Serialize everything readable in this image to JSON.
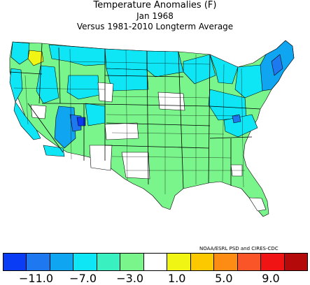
{
  "title": {
    "line1": "Temperature Anomalies (F)",
    "line2": "Jan 1968",
    "line3": "Versus 1981-2010 Longterm Average"
  },
  "credit": "NOAA/ESRL PSD and CIRES-CDC",
  "legend": {
    "colors": [
      "#0a3cf5",
      "#1e78f0",
      "#0fa5f0",
      "#0fe6f5",
      "#39f0c0",
      "#7af58c",
      "#ffffff",
      "#f0f514",
      "#fcc800",
      "#fc8c14",
      "#fa5528",
      "#f01414",
      "#b40a0a"
    ],
    "labels": [
      "-11.0",
      "-7.0",
      "-3.0",
      "1.0",
      "5.0",
      "9.0"
    ]
  },
  "map_colors": {
    "state_border": "#000000",
    "division_border": "#000000"
  }
}
